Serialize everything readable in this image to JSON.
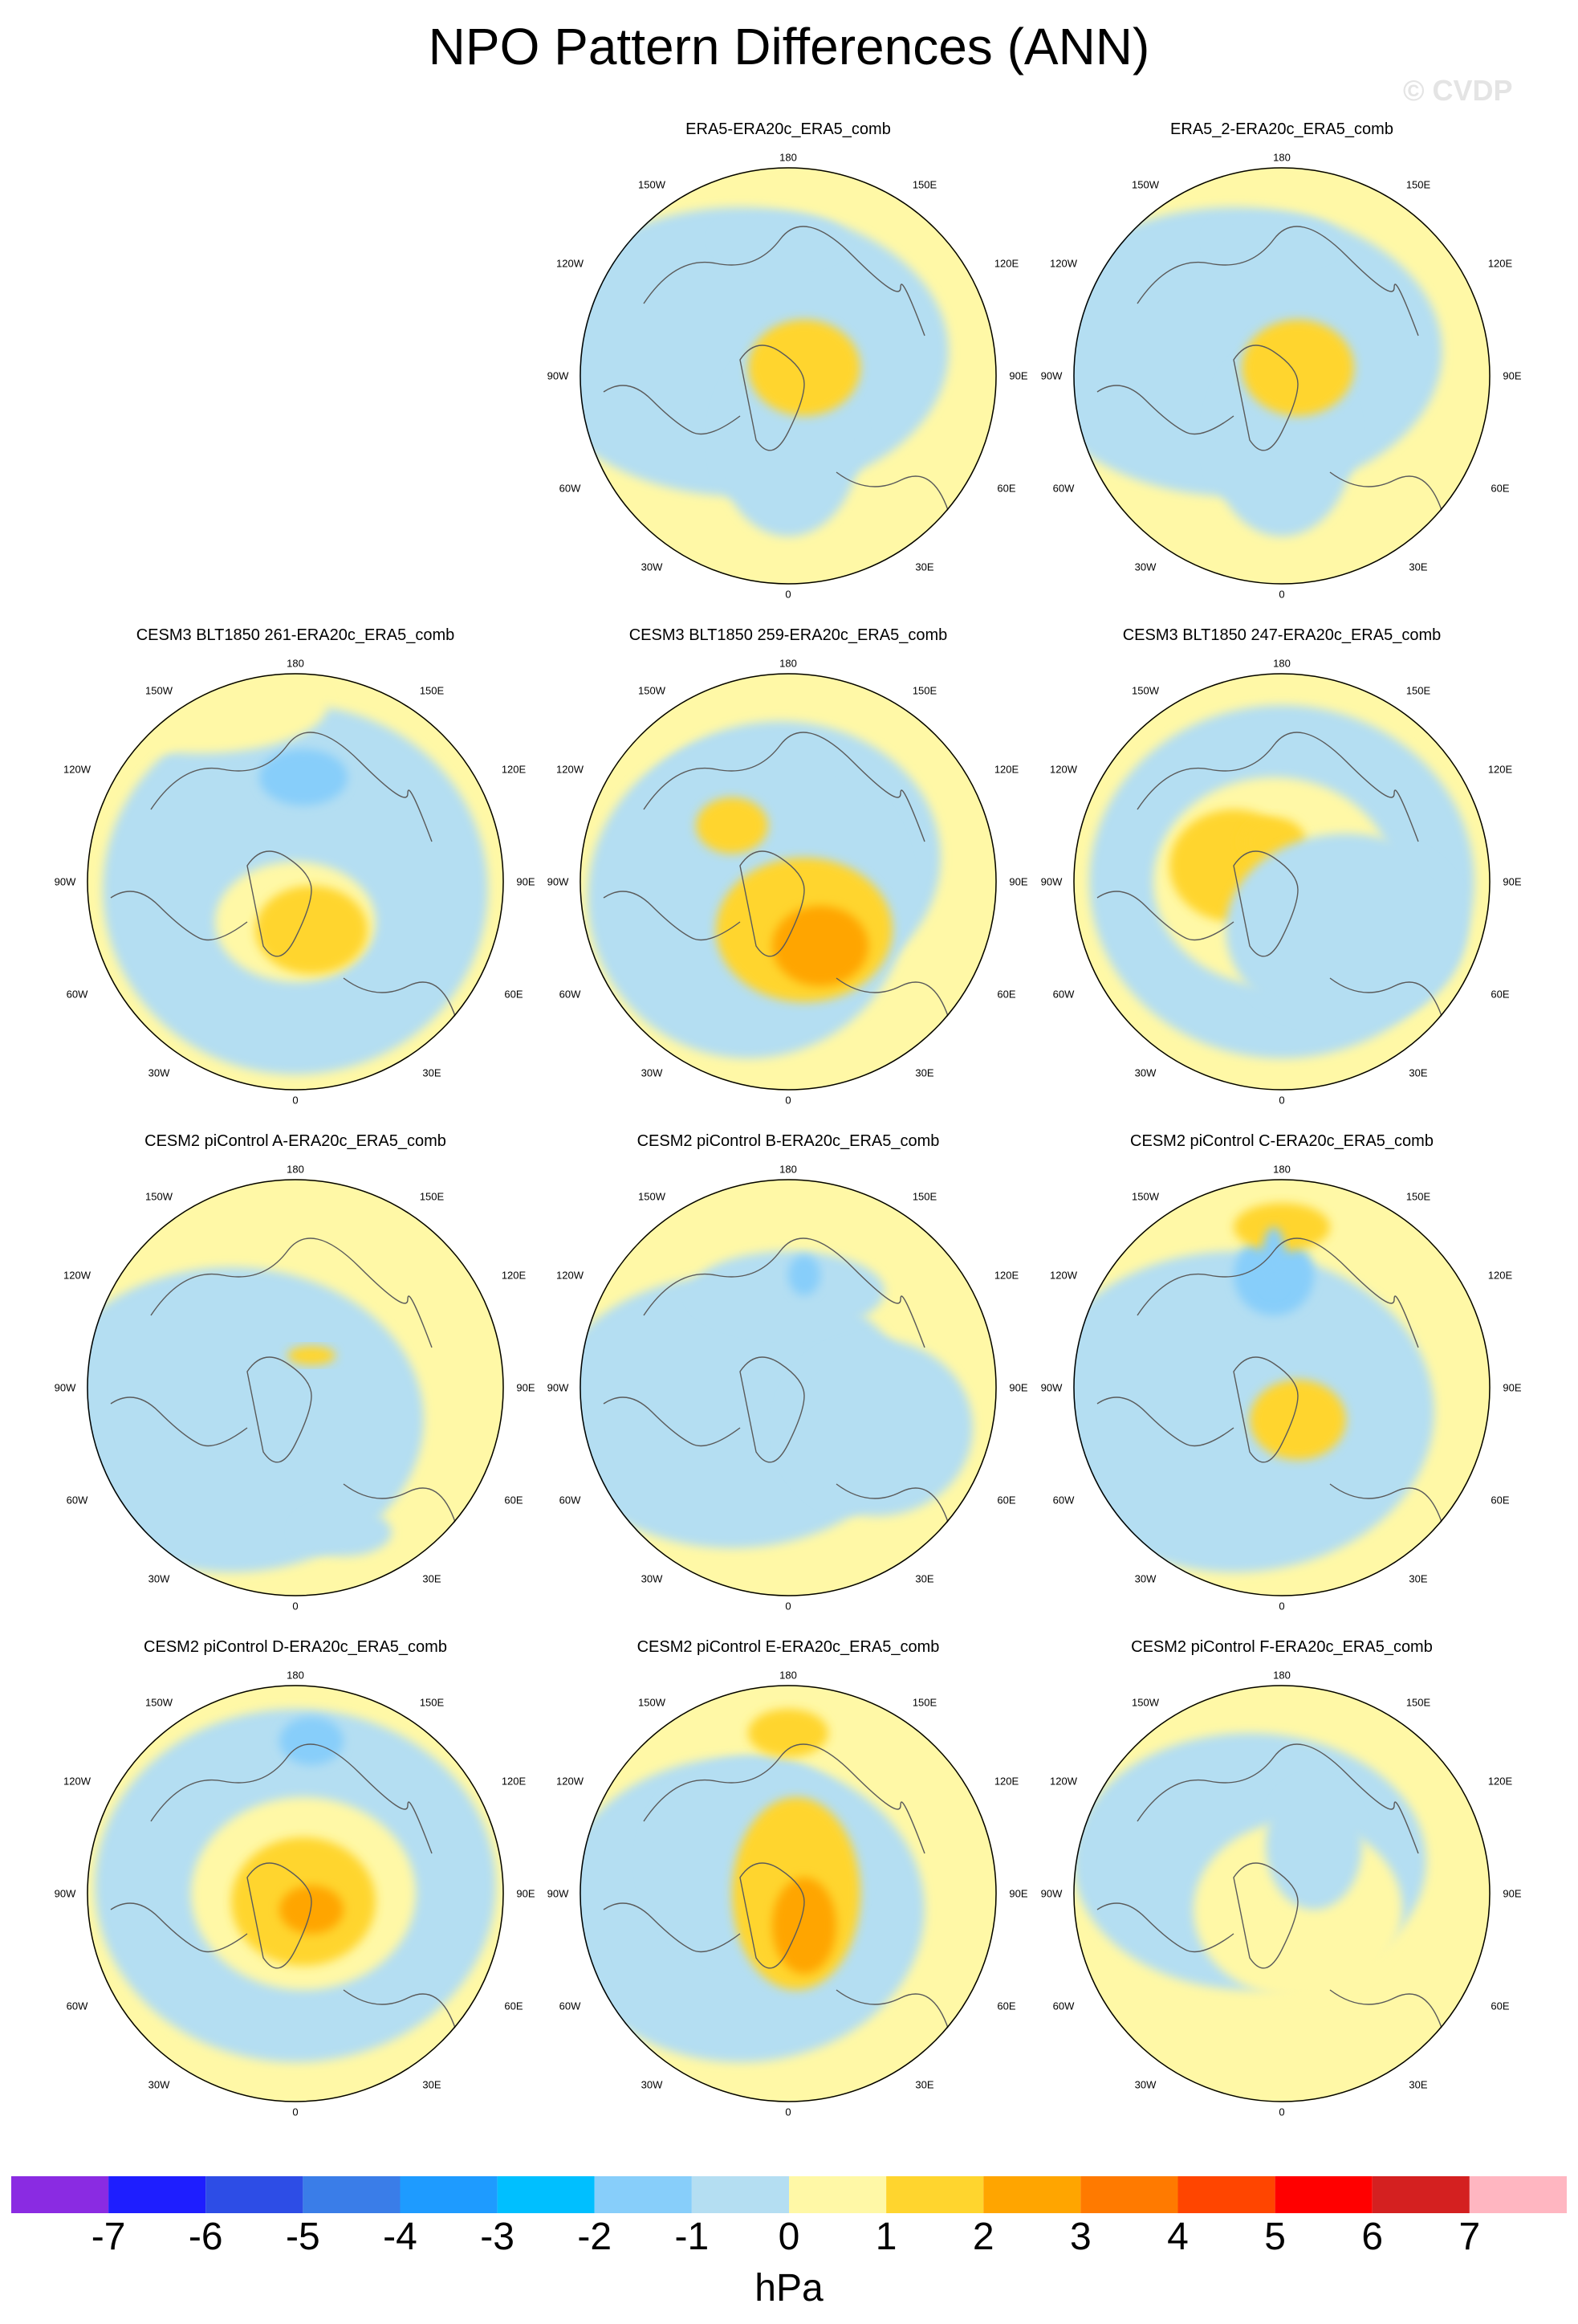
{
  "title": "NPO Pattern Differences (ANN)",
  "watermark": "© CVDP",
  "colors": {
    "positive": "#fff8a6",
    "negative": "#b4def2",
    "coast": "#5a5a5a"
  },
  "longitude_labels": {
    "top": "180",
    "upper_left": "150W",
    "upper_right": "150E",
    "mid_upper_left": "120W",
    "mid_upper_right": "120E",
    "left": "90W",
    "right": "90E",
    "mid_lower_left": "60W",
    "mid_lower_right": "60E",
    "lower_left": "30W",
    "lower_right": "30E",
    "bottom": "0"
  },
  "panels": [
    {
      "title": "ERA5-ERA20c_ERA5_comb"
    },
    {
      "title": "ERA5_2-ERA20c_ERA5_comb"
    },
    {
      "title": "CESM3 BLT1850 261-ERA20c_ERA5_comb"
    },
    {
      "title": "CESM3 BLT1850 259-ERA20c_ERA5_comb"
    },
    {
      "title": "CESM3 BLT1850 247-ERA20c_ERA5_comb"
    },
    {
      "title": "CESM2 piControl A-ERA20c_ERA5_comb"
    },
    {
      "title": "CESM2 piControl B-ERA20c_ERA5_comb"
    },
    {
      "title": "CESM2 piControl C-ERA20c_ERA5_comb"
    },
    {
      "title": "CESM2 piControl D-ERA20c_ERA5_comb"
    },
    {
      "title": "CESM2 piControl E-ERA20c_ERA5_comb"
    },
    {
      "title": "CESM2 piControl F-ERA20c_ERA5_comb"
    }
  ],
  "colorbar": {
    "colors": [
      "#8a2be2",
      "#1e1eff",
      "#2d4de6",
      "#3a7de8",
      "#1e9bff",
      "#00bfff",
      "#87cefa",
      "#b4def2",
      "#fff8a6",
      "#ffd52e",
      "#ffa500",
      "#ff7a00",
      "#ff4500",
      "#ff0000",
      "#d42020",
      "#ffb6c1"
    ],
    "ticks": [
      "-7",
      "-6",
      "-5",
      "-4",
      "-3",
      "-2",
      "-1",
      "0",
      "1",
      "2",
      "3",
      "4",
      "5",
      "6",
      "7"
    ],
    "units": "hPa"
  }
}
